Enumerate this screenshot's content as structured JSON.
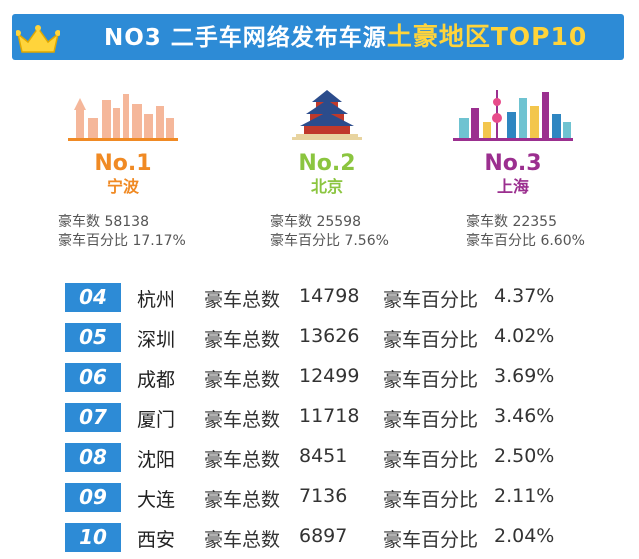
{
  "banner": {
    "title_prefix": "NO3 二手车网络发布车源",
    "title_highlight": "土豪地区",
    "title_suffix": "TOP10"
  },
  "colors": {
    "banner_blue": "#2d8bd6",
    "highlight_yellow": "#ffd43b",
    "no1_orange": "#f08a24",
    "no2_green": "#8bc53f",
    "no3_purple": "#9b2f8f"
  },
  "chart_data": {
    "type": "table",
    "title": "NO3 二手车网络发布车源土豪地区TOP10",
    "columns": [
      "rank",
      "city",
      "豪车总数",
      "豪车百分比"
    ],
    "top3": [
      {
        "rank_label": "No.1",
        "city": "宁波",
        "count_label": "豪车数",
        "count": "58138",
        "pct_label": "豪车百分比",
        "pct": "17.17%",
        "icon": "ningbo-skyline-icon"
      },
      {
        "rank_label": "No.2",
        "city": "北京",
        "count_label": "豪车数",
        "count": "25598",
        "pct_label": "豪车百分比",
        "pct": "7.56%",
        "icon": "temple-of-heaven-icon"
      },
      {
        "rank_label": "No.3",
        "city": "上海",
        "count_label": "豪车数",
        "count": "22355",
        "pct_label": "豪车百分比",
        "pct": "6.60%",
        "icon": "shanghai-skyline-icon"
      }
    ],
    "rows": [
      {
        "rank": "04",
        "city": "杭州",
        "count_label": "豪车总数",
        "count": "14798",
        "pct_label": "豪车百分比",
        "pct": "4.37%"
      },
      {
        "rank": "05",
        "city": "深圳",
        "count_label": "豪车总数",
        "count": "13626",
        "pct_label": "豪车百分比",
        "pct": "4.02%"
      },
      {
        "rank": "06",
        "city": "成都",
        "count_label": "豪车总数",
        "count": "12499",
        "pct_label": "豪车百分比",
        "pct": "3.69%"
      },
      {
        "rank": "07",
        "city": "厦门",
        "count_label": "豪车总数",
        "count": "11718",
        "pct_label": "豪车百分比",
        "pct": "3.46%"
      },
      {
        "rank": "08",
        "city": "沈阳",
        "count_label": "豪车总数",
        "count": "8451",
        "pct_label": "豪车百分比",
        "pct": "2.50%"
      },
      {
        "rank": "09",
        "city": "大连",
        "count_label": "豪车总数",
        "count": "7136",
        "pct_label": "豪车百分比",
        "pct": "2.11%"
      },
      {
        "rank": "10",
        "city": "西安",
        "count_label": "豪车总数",
        "count": "6897",
        "pct_label": "豪车百分比",
        "pct": "2.04%"
      }
    ]
  }
}
